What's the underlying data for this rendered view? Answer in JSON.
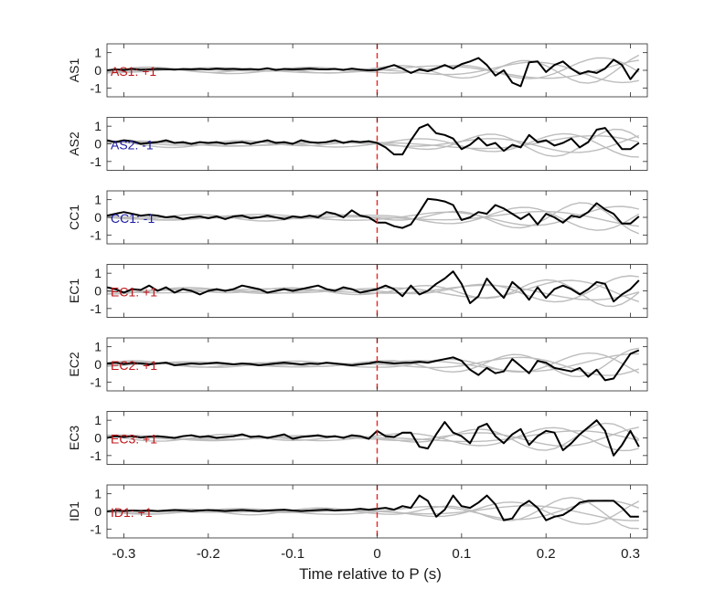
{
  "chart_data": {
    "type": "line",
    "xlabel": "Time relative to P (s)",
    "xlim": [
      -0.32,
      0.32
    ],
    "xticks": [
      -0.3,
      -0.2,
      -0.1,
      0,
      0.1,
      0.2,
      0.3
    ],
    "xtick_labels": [
      "-0.3",
      "-0.2",
      "-0.1",
      "0",
      "0.1",
      "0.2",
      "0.3"
    ],
    "ylim": [
      -1.5,
      1.5
    ],
    "yticks": [
      -1,
      0,
      1
    ],
    "ytick_labels": [
      "-1",
      "0",
      "1"
    ],
    "marker_x": 0,
    "colors": {
      "trace": "#000000",
      "background_traces": "#bdbdbd",
      "marker": "#e8261e",
      "positive_label": "#c0161a",
      "negative_label": "#1a1aa6"
    },
    "x": [
      -0.32,
      -0.31,
      -0.3,
      -0.29,
      -0.28,
      -0.27,
      -0.26,
      -0.25,
      -0.24,
      -0.23,
      -0.22,
      -0.21,
      -0.2,
      -0.19,
      -0.18,
      -0.17,
      -0.16,
      -0.15,
      -0.14,
      -0.13,
      -0.12,
      -0.11,
      -0.1,
      -0.09,
      -0.08,
      -0.07,
      -0.06,
      -0.05,
      -0.04,
      -0.03,
      -0.02,
      -0.01,
      0,
      0.01,
      0.02,
      0.03,
      0.04,
      0.05,
      0.06,
      0.07,
      0.08,
      0.09,
      0.1,
      0.11,
      0.12,
      0.13,
      0.14,
      0.15,
      0.16,
      0.17,
      0.18,
      0.19,
      0.2,
      0.21,
      0.22,
      0.23,
      0.24,
      0.25,
      0.26,
      0.27,
      0.28,
      0.29,
      0.3,
      0.31
    ],
    "panels": [
      {
        "ylabel": "AS1",
        "label": "AS1: +1",
        "polarity": "positive",
        "values": [
          0,
          0.05,
          0.02,
          0.08,
          0.03,
          0.05,
          0.08,
          0.06,
          0.04,
          0.07,
          0.05,
          0.08,
          0.05,
          0.1,
          0.06,
          0.08,
          0.05,
          0.07,
          0.04,
          0.12,
          0.02,
          0.08,
          0.05,
          0.07,
          0.1,
          0.06,
          0.05,
          0.08,
          0.02,
          0.1,
          0.04,
          0,
          0.02,
          0.15,
          0.3,
          0.1,
          -0.15,
          0.05,
          -0.05,
          0.1,
          0.3,
          0.1,
          0.35,
          0.5,
          0.7,
          0.3,
          -0.3,
          0,
          -0.7,
          -0.9,
          0.45,
          0.5,
          -0.1,
          0.3,
          0.5,
          0.1,
          -0.2,
          -0.05,
          -0.15,
          0.1,
          0.6,
          0.3,
          -0.5,
          0.1
        ]
      },
      {
        "ylabel": "AS2",
        "label": "AS2: -1",
        "polarity": "negative",
        "values": [
          0.2,
          0.1,
          0.2,
          0.15,
          0,
          0.05,
          0.1,
          0.2,
          0.05,
          0.1,
          0,
          0.1,
          0.05,
          0.1,
          0,
          0.05,
          0.1,
          0,
          0.1,
          0.2,
          0.05,
          0.1,
          0,
          0.2,
          0.1,
          0.05,
          0.1,
          0.2,
          0.05,
          0.15,
          0.1,
          0.15,
          0.05,
          -0.2,
          -0.6,
          -0.6,
          0.2,
          0.9,
          1.1,
          0.6,
          0.5,
          0.3,
          -0.3,
          -0.05,
          0.35,
          -0.1,
          0.05,
          -0.4,
          -0.05,
          -0.2,
          0.5,
          0.1,
          0.2,
          -0.1,
          0.05,
          0.3,
          -0.2,
          0.1,
          0.8,
          0.9,
          0.3,
          -0.3,
          -0.3,
          0.05
        ]
      },
      {
        "ylabel": "CC1",
        "label": "CC1: -1",
        "polarity": "negative",
        "values": [
          0.1,
          0.2,
          0.3,
          0.2,
          0.1,
          0.15,
          0.1,
          0,
          0.05,
          -0.1,
          0,
          0.05,
          -0.05,
          0.05,
          -0.1,
          0.05,
          0.1,
          -0.05,
          0,
          0.1,
          0,
          -0.1,
          0.05,
          0,
          0.1,
          0,
          0.3,
          0.2,
          0,
          0.4,
          0.1,
          0,
          -0.3,
          -0.3,
          -0.5,
          -0.6,
          -0.4,
          0.3,
          1.05,
          1.0,
          0.9,
          0.7,
          -0.15,
          0,
          0.3,
          0.2,
          0.7,
          0.5,
          0.2,
          -0.1,
          0.2,
          -0.4,
          0.2,
          0,
          -0.3,
          0.1,
          0,
          0.3,
          0.8,
          0.45,
          0.2,
          -0.35,
          -0.35,
          0.05
        ]
      },
      {
        "ylabel": "EC1",
        "label": "EC1: +1",
        "polarity": "positive",
        "values": [
          0.2,
          0.1,
          -0.1,
          0.1,
          0.05,
          0.3,
          0,
          0.2,
          -0.1,
          0.1,
          0,
          -0.2,
          0,
          0.1,
          0,
          0.1,
          0.3,
          0.2,
          0.1,
          -0.1,
          0,
          0.1,
          0,
          0.1,
          0.2,
          0.3,
          0.1,
          0,
          0.2,
          0.1,
          -0.1,
          0,
          0.1,
          0.3,
          0.1,
          -0.3,
          0.3,
          -0.2,
          0,
          0.4,
          0.7,
          1.1,
          0.4,
          -0.7,
          -0.3,
          0.7,
          0.1,
          -0.4,
          0.5,
          0.1,
          -0.5,
          0.2,
          -0.4,
          0.1,
          0.3,
          0.1,
          -0.2,
          0.1,
          0.5,
          0.4,
          -0.6,
          -0.2,
          0.1,
          0.6
        ]
      },
      {
        "ylabel": "EC2",
        "label": "EC2: +1",
        "polarity": "positive",
        "values": [
          0.05,
          0.1,
          0.02,
          0.08,
          0.05,
          0,
          0.05,
          0.1,
          -0.05,
          0,
          0.05,
          0.02,
          0.05,
          0.1,
          0.05,
          0,
          0.05,
          0.02,
          -0.05,
          0,
          0.05,
          0.1,
          0.05,
          0,
          0.05,
          0.02,
          0.1,
          0.05,
          0,
          -0.05,
          0,
          0.05,
          0.15,
          0.1,
          0.05,
          0.08,
          0.1,
          0.15,
          0.1,
          0.2,
          0.3,
          0.4,
          0.2,
          -0.3,
          -0.6,
          -0.2,
          -0.5,
          -0.4,
          0.3,
          -0.1,
          -0.5,
          0.2,
          0.1,
          -0.2,
          -0.3,
          -0.4,
          -0.2,
          -0.7,
          -0.3,
          -0.9,
          -0.8,
          -0.1,
          0.6,
          0.8
        ]
      },
      {
        "ylabel": "EC3",
        "label": "EC3: +1",
        "polarity": "positive",
        "values": [
          0,
          0.1,
          0.05,
          0.1,
          0.02,
          0.08,
          0.1,
          0.05,
          0,
          0.1,
          0.15,
          0.05,
          0.1,
          0,
          0.05,
          0.1,
          0.2,
          0.05,
          0.1,
          0,
          0.1,
          0.2,
          -0.05,
          0.05,
          0.1,
          0.15,
          0.05,
          0.1,
          0,
          0.15,
          0.1,
          -0.05,
          0.4,
          0.1,
          0.05,
          0.3,
          0.3,
          -0.5,
          -0.6,
          0.2,
          0.9,
          0.3,
          0.1,
          -0.3,
          0.6,
          0.8,
          0.1,
          -0.3,
          0.2,
          0.5,
          -0.4,
          0.1,
          0.4,
          0.3,
          -0.7,
          -0.3,
          0.2,
          0.6,
          1.0,
          0.4,
          -1.0,
          -0.4,
          0.4,
          -0.5
        ]
      },
      {
        "ylabel": "ID1",
        "label": "ID1: +1",
        "polarity": "positive",
        "values": [
          0,
          0.05,
          0.02,
          0.05,
          0.03,
          0.05,
          0.02,
          0.05,
          0.08,
          0.05,
          0.02,
          0.05,
          0.08,
          0.05,
          0.02,
          0.05,
          0.08,
          0.05,
          0.02,
          0.05,
          0.08,
          0.1,
          0.05,
          0.02,
          0.05,
          0.08,
          0.1,
          0.05,
          0.08,
          0.1,
          0.15,
          0.1,
          0.15,
          0.2,
          0.1,
          0.3,
          0.2,
          0.9,
          0.6,
          -0.3,
          0.1,
          0.9,
          0.3,
          0.2,
          0.5,
          0.9,
          0.4,
          -0.5,
          -0.4,
          0.3,
          0.6,
          0.2,
          -0.5,
          -0.3,
          -0.2,
          0.1,
          0.5,
          0.6,
          0.6,
          0.6,
          0.6,
          0.2,
          -0.3,
          -0.3
        ]
      }
    ]
  }
}
